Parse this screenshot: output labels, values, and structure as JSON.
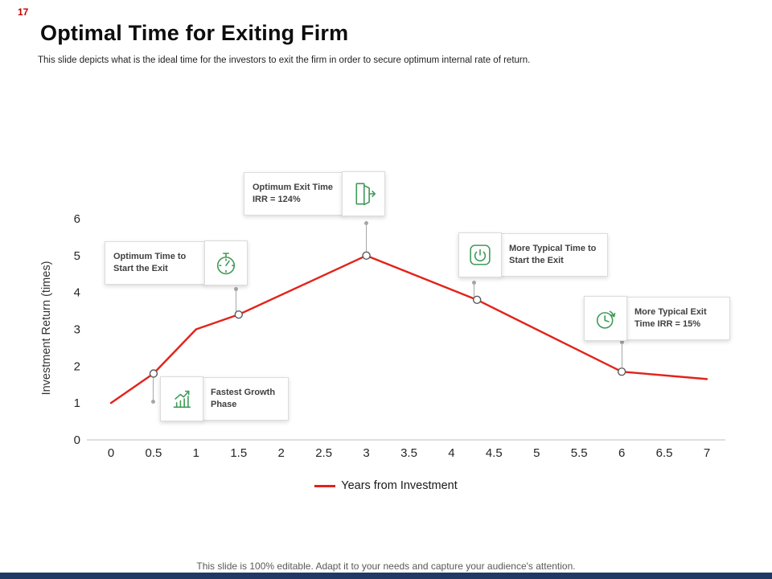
{
  "page": {
    "number": "17",
    "title": "Optimal Time for Exiting Firm",
    "subtitle": "This slide depicts what is the ideal time for the investors to exit the firm in order to secure optimum internal rate of return.",
    "footer": "This slide is 100% editable. Adapt it to your needs and capture your audience's attention."
  },
  "chart_data": {
    "type": "line",
    "title": "",
    "xlabel": "Years from Investment",
    "ylabel": "Investment  Return  (times)",
    "x_ticks": [
      "0",
      "0.5",
      "1",
      "1.5",
      "2",
      "2.5",
      "3",
      "3.5",
      "4",
      "4.5",
      "5",
      "5.5",
      "6",
      "6.5",
      "7"
    ],
    "y_ticks": [
      "0",
      "1",
      "2",
      "3",
      "4",
      "5",
      "6"
    ],
    "xlim": [
      0,
      7
    ],
    "ylim": [
      0,
      6
    ],
    "grid": false,
    "series": [
      {
        "name": "Years from Investment",
        "color": "#e2231a",
        "points": [
          [
            0,
            1
          ],
          [
            0.5,
            1.8
          ],
          [
            1,
            3
          ],
          [
            1.5,
            3.4
          ],
          [
            3,
            5
          ],
          [
            4.3,
            3.8
          ],
          [
            6,
            1.85
          ],
          [
            7,
            1.65
          ]
        ]
      }
    ],
    "markers": [
      [
        0.5,
        1.8
      ],
      [
        1.5,
        3.4
      ],
      [
        3,
        5
      ],
      [
        4.3,
        3.8
      ],
      [
        6,
        1.85
      ]
    ],
    "legend": {
      "label": "Years from Investment",
      "position": "bottom"
    }
  },
  "callouts": {
    "optimum_exit": {
      "label": "Optimum Exit Time IRR = 124%",
      "icon": "exit-door-icon"
    },
    "optimum_start": {
      "label": "Optimum Time to Start the Exit",
      "icon": "stopwatch-icon"
    },
    "typical_start": {
      "label": "More Typical Time to Start the Exit",
      "icon": "power-icon"
    },
    "typical_exit": {
      "label": "More Typical Exit Time IRR = 15%",
      "icon": "clock-redo-icon"
    },
    "fastest_growth": {
      "label": "Fastest Growth Phase",
      "icon": "growth-bars-icon"
    }
  },
  "colors": {
    "line_red": "#e2231a",
    "icon_green": "#3f9a57",
    "bottom_bar": "#1f3864",
    "page_number_red": "#c00000",
    "marker_stroke": "#595959",
    "axis_gray": "#bfbfbf"
  }
}
